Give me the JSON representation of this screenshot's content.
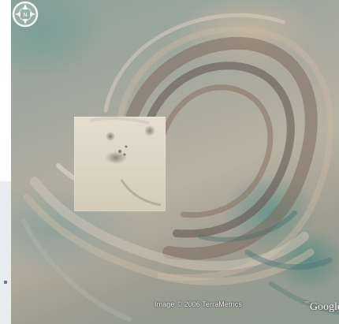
{
  "viewer": {
    "attribution": "Image © 2006 TerraMetrics",
    "logo_prefix": "™",
    "logo_text": "Google",
    "compass_letter": "N"
  },
  "icons": {
    "compass": "compass-navigation-icon"
  },
  "colors": {
    "overlay_fill": "#ddd5c5",
    "text": "#ffffff"
  }
}
